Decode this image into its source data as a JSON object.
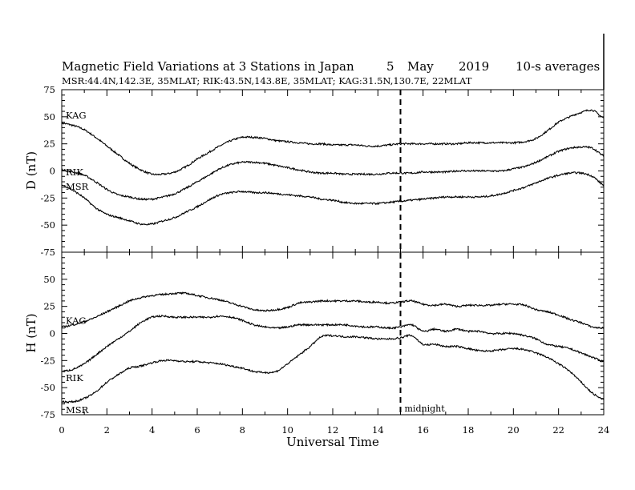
{
  "header": {
    "title_left": "Magnetic Field Variations at 3 Stations in Japan",
    "title_day": "5",
    "title_month": "May",
    "title_year": "2019",
    "title_avg": "10-s averages",
    "subtitle": "MSR:44.4N,142.3E, 35MLAT;  RIK:43.5N,143.8E, 35MLAT;  KAG:31.5N,130.7E, 22MLAT"
  },
  "annotation": {
    "midnight_label": "midnight",
    "midnight_ut": 15
  },
  "chart_data": [
    {
      "type": "line",
      "panel": "top",
      "ylabel": "D (nT)",
      "ylim": [
        -75,
        75
      ],
      "yticks": [
        75,
        50,
        25,
        0,
        -25,
        -50,
        -75
      ],
      "xlim": [
        0,
        24
      ],
      "grid": false,
      "series": [
        {
          "name": "KAG",
          "x": [
            0,
            0.5,
            1,
            1.5,
            2,
            2.5,
            3,
            3.5,
            4,
            4.5,
            5,
            5.5,
            6,
            6.5,
            7,
            7.5,
            8,
            8.5,
            9,
            9.5,
            10,
            10.5,
            11,
            11.5,
            12,
            12.5,
            13,
            13.5,
            14,
            14.5,
            15,
            15.5,
            16,
            16.5,
            17,
            17.5,
            18,
            18.5,
            19,
            19.5,
            20,
            20.5,
            21,
            21.5,
            22,
            22.5,
            23,
            23.5,
            24
          ],
          "y": [
            44,
            42,
            38,
            31,
            23,
            15,
            7,
            1,
            -3,
            -3,
            -1,
            4,
            11,
            17,
            23,
            28,
            31,
            31,
            30,
            28,
            27,
            26,
            25,
            25,
            24,
            24,
            24,
            23,
            23,
            24,
            25,
            25,
            25,
            25,
            25,
            25,
            26,
            26,
            26,
            26,
            26,
            27,
            30,
            37,
            45,
            50,
            54,
            56,
            49
          ]
        },
        {
          "name": "RIK",
          "x": [
            0,
            0.5,
            1,
            1.5,
            2,
            2.5,
            3,
            3.5,
            4,
            4.5,
            5,
            5.5,
            6,
            6.5,
            7,
            7.5,
            8,
            8.5,
            9,
            9.5,
            10,
            10.5,
            11,
            11.5,
            12,
            12.5,
            13,
            13.5,
            14,
            14.5,
            15,
            15.5,
            16,
            16.5,
            17,
            17.5,
            18,
            18.5,
            19,
            19.5,
            20,
            20.5,
            21,
            21.5,
            22,
            22.5,
            23,
            23.5,
            24
          ],
          "y": [
            1,
            -1,
            -4,
            -10,
            -17,
            -22,
            -24,
            -26,
            -26,
            -24,
            -21,
            -16,
            -10,
            -4,
            2,
            6,
            8,
            8,
            7,
            5,
            3,
            1,
            -1,
            -2,
            -2,
            -3,
            -3,
            -3,
            -3,
            -2,
            -2,
            -2,
            -1,
            -1,
            -1,
            0,
            0,
            0,
            0,
            0,
            2,
            4,
            8,
            13,
            18,
            21,
            22,
            21,
            14
          ]
        },
        {
          "name": "MSR",
          "x": [
            0,
            0.5,
            1,
            1.5,
            2,
            2.5,
            3,
            3.5,
            4,
            4.5,
            5,
            5.5,
            6,
            6.5,
            7,
            7.5,
            8,
            8.5,
            9,
            9.5,
            10,
            10.5,
            11,
            11.5,
            12,
            12.5,
            13,
            13.5,
            14,
            14.5,
            15,
            15.5,
            16,
            16.5,
            17,
            17.5,
            18,
            18.5,
            19,
            19.5,
            20,
            20.5,
            21,
            21.5,
            22,
            22.5,
            23,
            23.5,
            24
          ],
          "y": [
            -13,
            -18,
            -25,
            -34,
            -40,
            -43,
            -46,
            -49,
            -49,
            -46,
            -43,
            -38,
            -33,
            -27,
            -22,
            -20,
            -19,
            -20,
            -20,
            -21,
            -22,
            -23,
            -24,
            -26,
            -27,
            -29,
            -30,
            -30,
            -30,
            -29,
            -28,
            -27,
            -26,
            -25,
            -24,
            -24,
            -24,
            -24,
            -23,
            -21,
            -18,
            -15,
            -11,
            -7,
            -4,
            -2,
            -2,
            -5,
            -13
          ]
        }
      ]
    },
    {
      "type": "line",
      "panel": "bottom",
      "ylabel": "H (nT)",
      "xlabel": "Universal Time",
      "ylim": [
        -75,
        75
      ],
      "yticks": [
        75,
        50,
        25,
        0,
        -25,
        -50,
        -75
      ],
      "xlim": [
        0,
        24
      ],
      "xticks": [
        0,
        2,
        4,
        6,
        8,
        10,
        12,
        14,
        16,
        18,
        20,
        22,
        24
      ],
      "grid": false,
      "series": [
        {
          "name": "KAG",
          "x": [
            0,
            0.5,
            1,
            1.5,
            2,
            2.5,
            3,
            3.5,
            4,
            4.5,
            5,
            5.5,
            6,
            6.5,
            7,
            7.5,
            8,
            8.5,
            9,
            9.5,
            10,
            10.5,
            11,
            11.5,
            12,
            12.5,
            13,
            13.5,
            14,
            14.5,
            15,
            15.5,
            16,
            16.5,
            17,
            17.5,
            18,
            18.5,
            19,
            19.5,
            20,
            20.5,
            21,
            21.5,
            22,
            22.5,
            23,
            23.5,
            24
          ],
          "y": [
            6,
            8,
            11,
            15,
            20,
            25,
            30,
            33,
            35,
            36,
            37,
            37,
            35,
            33,
            31,
            28,
            25,
            22,
            21,
            22,
            24,
            28,
            29,
            30,
            30,
            30,
            30,
            29,
            29,
            28,
            29,
            30,
            27,
            26,
            27,
            25,
            26,
            26,
            26,
            27,
            27,
            26,
            22,
            20,
            17,
            13,
            10,
            6,
            5
          ]
        },
        {
          "name": "RIK",
          "x": [
            0,
            0.5,
            1,
            1.5,
            2,
            2.5,
            3,
            3.5,
            4,
            4.5,
            5,
            5.5,
            6,
            6.5,
            7,
            7.5,
            8,
            8.5,
            9,
            9.5,
            10,
            10.5,
            11,
            11.5,
            12,
            12.5,
            13,
            13.5,
            14,
            14.5,
            15,
            15.5,
            16,
            16.5,
            17,
            17.5,
            18,
            18.5,
            19,
            19.5,
            20,
            20.5,
            21,
            21.5,
            22,
            22.5,
            23,
            23.5,
            24
          ],
          "y": [
            -35,
            -33,
            -28,
            -20,
            -12,
            -5,
            2,
            10,
            15,
            16,
            15,
            15,
            15,
            15,
            16,
            15,
            12,
            8,
            6,
            5,
            6,
            8,
            8,
            8,
            8,
            8,
            7,
            6,
            6,
            5,
            6,
            8,
            2,
            4,
            2,
            4,
            2,
            2,
            0,
            0,
            0,
            -2,
            -5,
            -10,
            -12,
            -14,
            -18,
            -22,
            -26
          ]
        },
        {
          "name": "MSR",
          "x": [
            0,
            0.5,
            1,
            1.5,
            2,
            2.5,
            3,
            3.5,
            4,
            4.5,
            5,
            5.5,
            6,
            6.5,
            7,
            7.5,
            8,
            8.5,
            9,
            9.5,
            10,
            10.5,
            11,
            11.5,
            12,
            12.5,
            13,
            13.5,
            14,
            14.5,
            15,
            15.5,
            16,
            16.5,
            17,
            17.5,
            18,
            18.5,
            19,
            19.5,
            20,
            20.5,
            21,
            21.5,
            22,
            22.5,
            23,
            23.5,
            24
          ],
          "y": [
            -63,
            -63,
            -60,
            -54,
            -45,
            -38,
            -32,
            -30,
            -27,
            -25,
            -25,
            -26,
            -26,
            -27,
            -28,
            -30,
            -32,
            -35,
            -36,
            -35,
            -28,
            -20,
            -12,
            -3,
            -2,
            -3,
            -3,
            -4,
            -5,
            -5,
            -4,
            -2,
            -10,
            -10,
            -12,
            -12,
            -14,
            -16,
            -16,
            -15,
            -14,
            -15,
            -18,
            -22,
            -28,
            -35,
            -45,
            -55,
            -61
          ]
        }
      ]
    }
  ]
}
